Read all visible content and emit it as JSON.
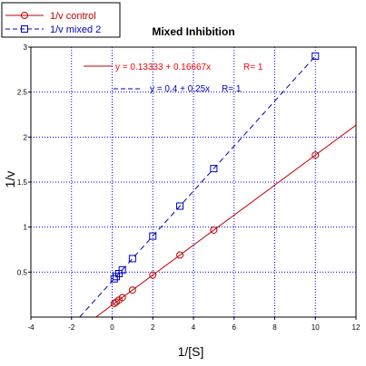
{
  "chart_data": {
    "type": "scatter",
    "title": "Mixed Inhibition",
    "xlabel": "1/[S]",
    "ylabel": "1/v",
    "xlim": [
      -4,
      12
    ],
    "ylim": [
      0,
      3
    ],
    "xticks": [
      -4,
      -2,
      0,
      2,
      4,
      6,
      8,
      10,
      12
    ],
    "yticks": [
      0.5,
      1,
      1.5,
      2,
      2.5,
      3
    ],
    "x_tick_labels": [
      "-4",
      "-2",
      "0",
      "2",
      "4",
      "6",
      "8",
      "10",
      "12"
    ],
    "y_tick_labels": [
      "0.5",
      "1",
      "1.5",
      "2",
      "2.5",
      "3"
    ],
    "grid": true,
    "legend_position": "top-left",
    "series": [
      {
        "name": "1/v control",
        "color": "#c00000",
        "marker": "circle",
        "line_style": "solid",
        "x": [
          0.1,
          0.2,
          0.333,
          0.5,
          1,
          2,
          3.333,
          5,
          10
        ],
        "y": [
          0.15,
          0.167,
          0.189,
          0.217,
          0.3,
          0.467,
          0.689,
          0.967,
          1.8
        ],
        "fit": {
          "intercept": 0.13333,
          "slope": 0.16667,
          "x_range": [
            -0.8,
            12
          ]
        },
        "equation": "y = 0.13333 + 0.16667x",
        "r_text": "R= 1"
      },
      {
        "name": "1/v mixed 2",
        "color": "#0000c0",
        "marker": "square",
        "line_style": "dashed",
        "x": [
          0.1,
          0.2,
          0.333,
          0.5,
          1,
          2,
          3.333,
          5,
          10
        ],
        "y": [
          0.425,
          0.45,
          0.483,
          0.525,
          0.65,
          0.9,
          1.233,
          1.65,
          2.9
        ],
        "fit": {
          "intercept": 0.4,
          "slope": 0.25,
          "x_range": [
            -1.6,
            10
          ]
        },
        "equation": "y = 0.4 + 0.25x",
        "r_text": "R= 1"
      }
    ]
  }
}
